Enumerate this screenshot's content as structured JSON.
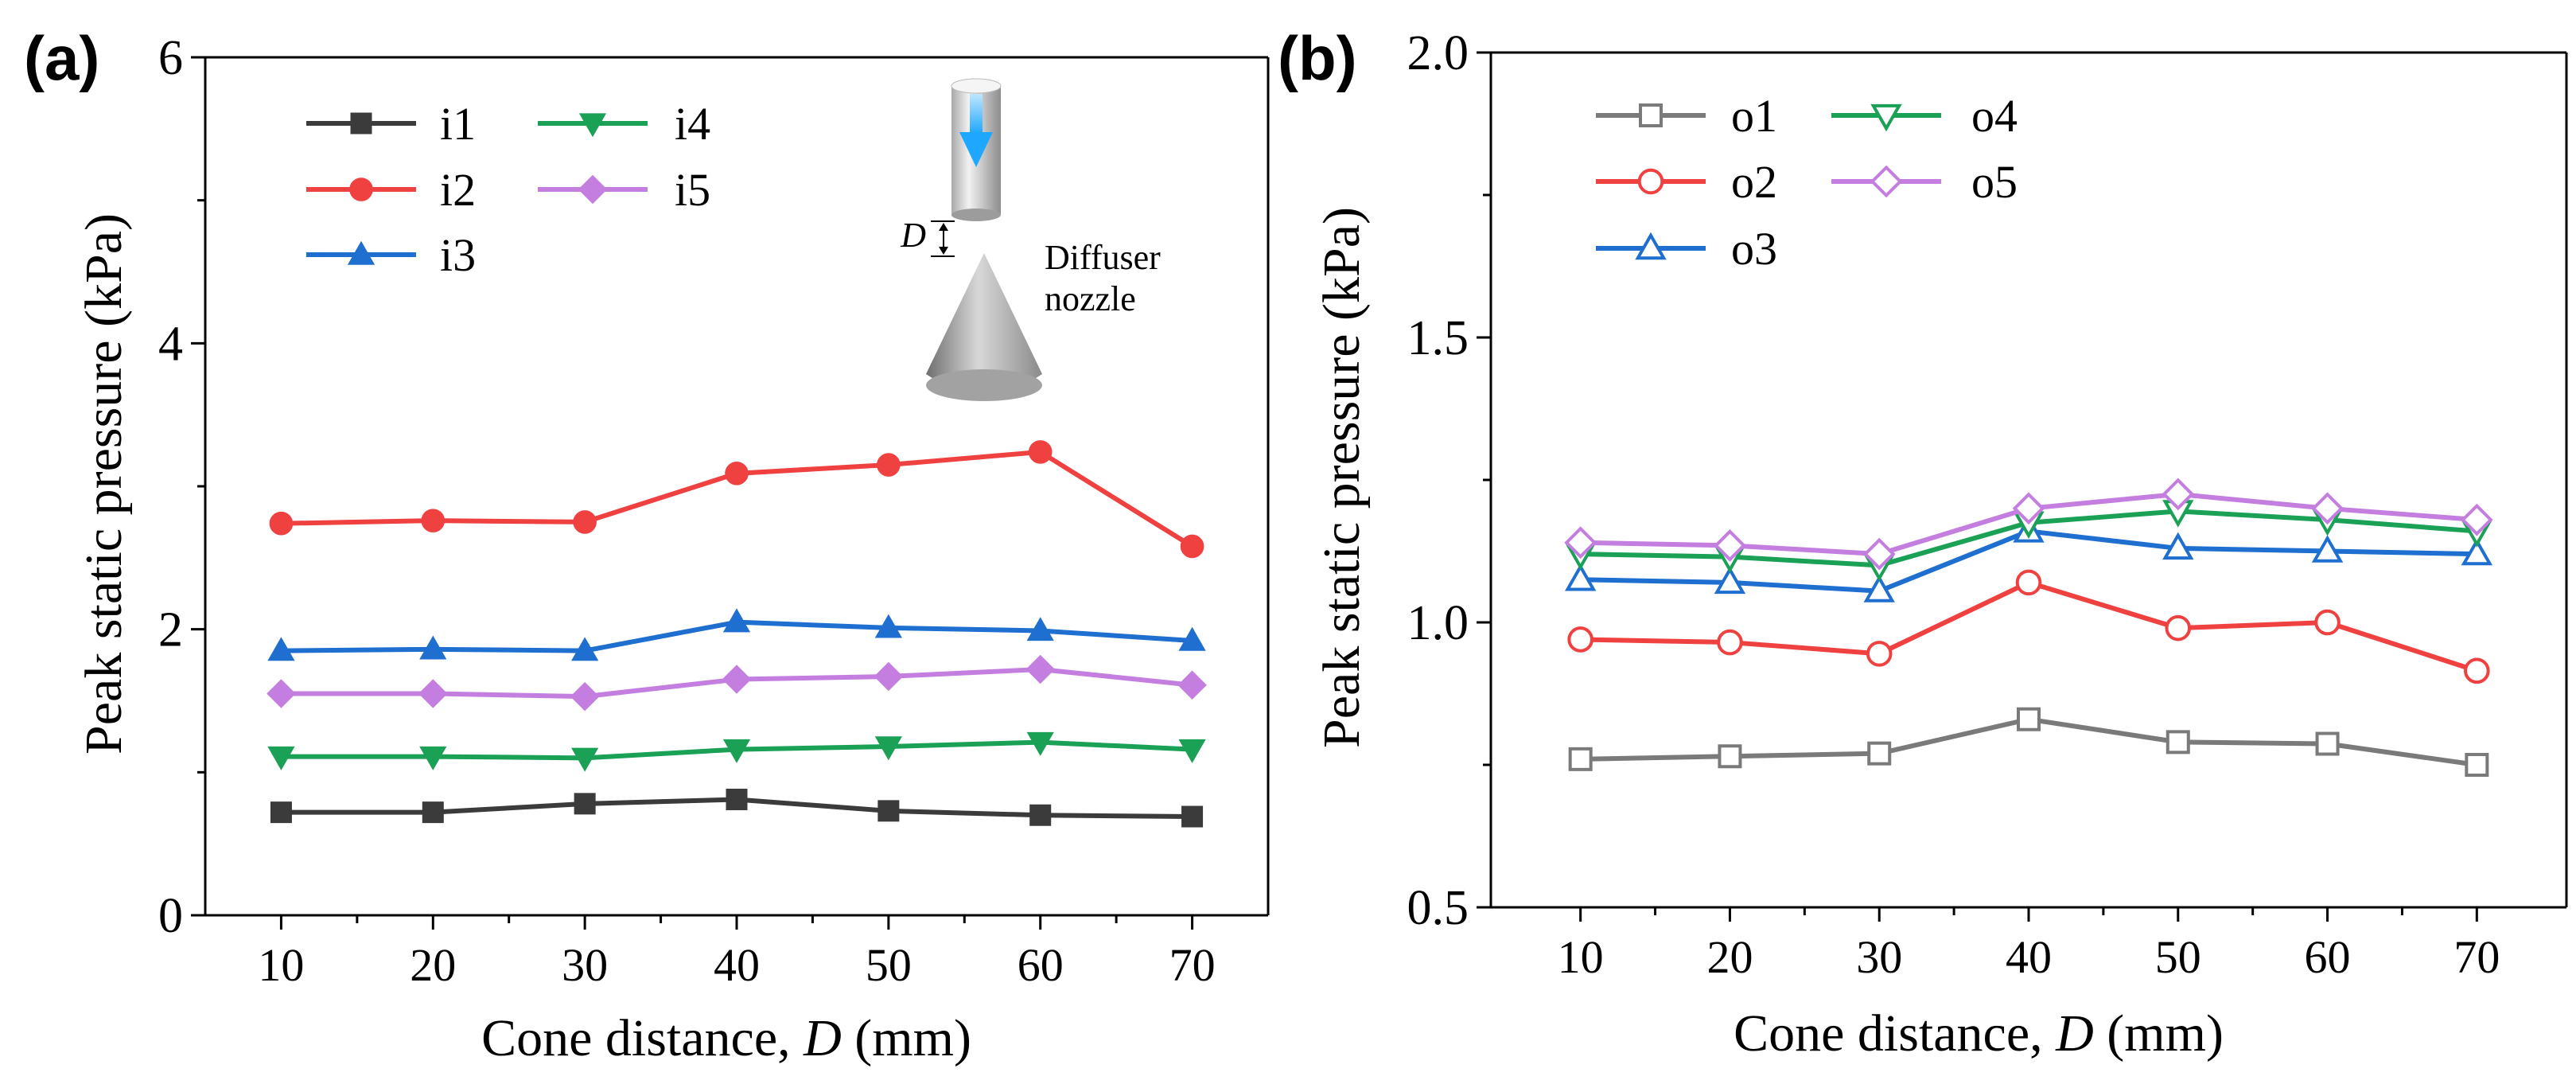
{
  "chart_data": [
    {
      "panel_label": "(a)",
      "type": "line",
      "xlabel_prefix": "Cone distance, ",
      "xlabel_var": "D",
      "xlabel_suffix": " (mm)",
      "ylabel": "Peak static pressure (kPa)",
      "x": [
        10,
        20,
        30,
        40,
        50,
        60,
        70
      ],
      "x_tick_labels": [
        "10",
        "20",
        "30",
        "40",
        "50",
        "60",
        "70"
      ],
      "xlim": [
        5,
        75
      ],
      "ylim": [
        0,
        6
      ],
      "y_ticks": [
        0,
        2,
        4,
        6
      ],
      "y_tick_labels": [
        "0",
        "2",
        "4",
        "6"
      ],
      "marker_fill": "filled",
      "series": [
        {
          "name": "i1",
          "color": "#3b3b3b",
          "marker": "square",
          "values": [
            0.72,
            0.72,
            0.78,
            0.81,
            0.73,
            0.7,
            0.69
          ]
        },
        {
          "name": "i2",
          "color": "#f04141",
          "marker": "circle",
          "values": [
            2.74,
            2.76,
            2.75,
            3.09,
            3.15,
            3.24,
            2.58
          ]
        },
        {
          "name": "i3",
          "color": "#1f6fd0",
          "marker": "triangle-up",
          "values": [
            1.85,
            1.86,
            1.85,
            2.05,
            2.01,
            1.99,
            1.92
          ]
        },
        {
          "name": "i4",
          "color": "#1aa156",
          "marker": "triangle-down",
          "values": [
            1.11,
            1.11,
            1.1,
            1.16,
            1.18,
            1.21,
            1.16
          ]
        },
        {
          "name": "i5",
          "color": "#c37ee0",
          "marker": "diamond",
          "values": [
            1.55,
            1.55,
            1.53,
            1.65,
            1.67,
            1.72,
            1.61
          ]
        }
      ],
      "inset": {
        "var_label": "D",
        "caption_line1": "Diffuser",
        "caption_line2": "nozzle"
      }
    },
    {
      "panel_label": "(b)",
      "type": "line",
      "xlabel_prefix": "Cone distance, ",
      "xlabel_var": "D",
      "xlabel_suffix": " (mm)",
      "ylabel": "Peak static pressure (kPa)",
      "x": [
        10,
        20,
        30,
        40,
        50,
        60,
        70
      ],
      "x_tick_labels": [
        "10",
        "20",
        "30",
        "40",
        "50",
        "60",
        "70"
      ],
      "xlim": [
        4,
        76
      ],
      "ylim": [
        0.5,
        2.0
      ],
      "y_ticks": [
        0.5,
        1.0,
        1.5,
        2.0
      ],
      "y_tick_labels": [
        "0.5",
        "1.0",
        "1.5",
        "2.0"
      ],
      "marker_fill": "hollow",
      "series": [
        {
          "name": "o1",
          "color": "#7a7a7a",
          "marker": "square",
          "values": [
            0.76,
            0.765,
            0.77,
            0.83,
            0.79,
            0.787,
            0.75
          ]
        },
        {
          "name": "o2",
          "color": "#f04141",
          "marker": "circle",
          "values": [
            0.97,
            0.965,
            0.945,
            1.07,
            0.99,
            1.0,
            0.915
          ]
        },
        {
          "name": "o3",
          "color": "#1f6fd0",
          "marker": "triangle-up",
          "values": [
            1.075,
            1.07,
            1.055,
            1.16,
            1.13,
            1.125,
            1.12
          ]
        },
        {
          "name": "o4",
          "color": "#1aa156",
          "marker": "triangle-down",
          "values": [
            1.12,
            1.115,
            1.1,
            1.175,
            1.195,
            1.18,
            1.16
          ]
        },
        {
          "name": "o5",
          "color": "#c37ee0",
          "marker": "diamond",
          "values": [
            1.14,
            1.135,
            1.12,
            1.2,
            1.225,
            1.2,
            1.18
          ]
        }
      ]
    }
  ]
}
